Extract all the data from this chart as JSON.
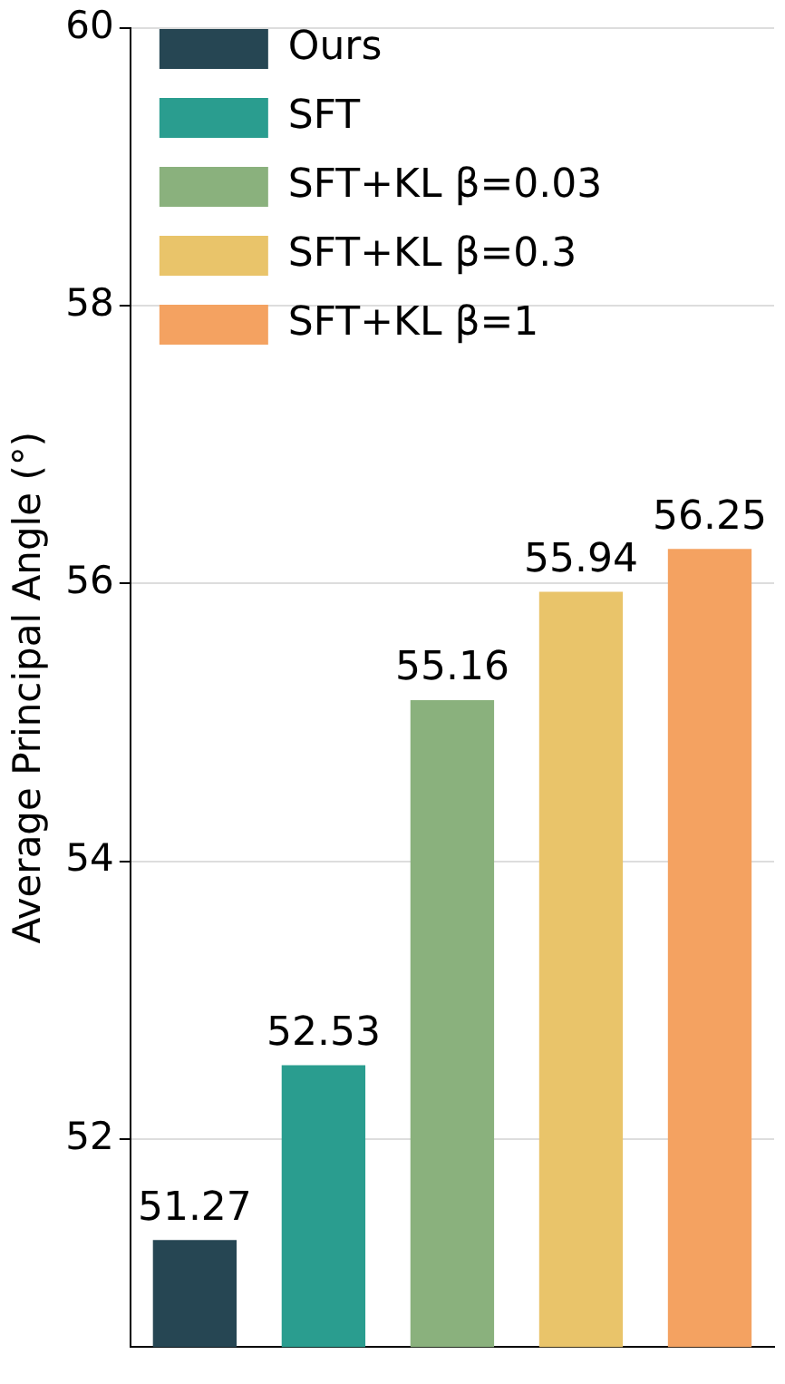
{
  "chart_data": {
    "type": "bar",
    "ylabel": "Average Principal Angle (°)",
    "categories": [
      null,
      null,
      null,
      null,
      null
    ],
    "series": [
      {
        "name": "Ours",
        "color": "#264653",
        "values": [
          51.27,
          null,
          null,
          null,
          null
        ]
      },
      {
        "name": "SFT",
        "color": "#2a9d8f",
        "values": [
          null,
          52.53,
          null,
          null,
          null
        ]
      },
      {
        "name": "SFT+KL β=0.03",
        "color": "#8ab17d",
        "values": [
          null,
          null,
          55.16,
          null,
          null
        ]
      },
      {
        "name": "SFT+KL β=0.3",
        "color": "#e9c46a",
        "values": [
          null,
          null,
          null,
          55.94,
          null
        ]
      },
      {
        "name": "SFT+KL β=1",
        "color": "#f4a261",
        "values": [
          null,
          null,
          null,
          null,
          56.25
        ]
      }
    ],
    "ylim": [
      50.5,
      60
    ],
    "yticks": [
      52,
      54,
      56,
      58,
      60
    ],
    "grid": "y",
    "legend": "top left",
    "data_labels": true
  }
}
